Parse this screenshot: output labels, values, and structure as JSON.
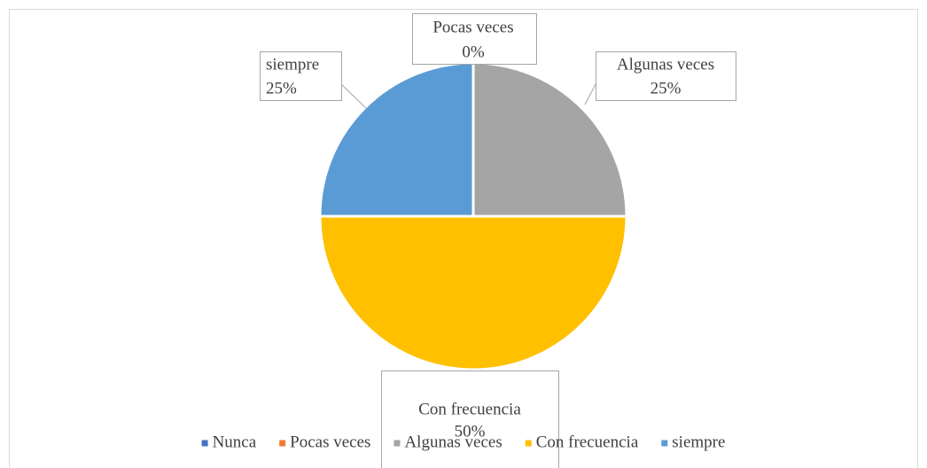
{
  "chart_data": {
    "type": "pie",
    "categories": [
      "Nunca",
      "Pocas veces",
      "Algunas veces",
      "Con frecuencia",
      "siempre"
    ],
    "values": [
      0,
      0,
      25,
      50,
      25
    ],
    "value_labels": [
      null,
      "0%",
      "25%",
      "50%",
      "25%"
    ],
    "colors": [
      "#4472c4",
      "#ed7d31",
      "#a5a5a5",
      "#ffc000",
      "#5b9bd5"
    ],
    "legend": "bottom"
  }
}
